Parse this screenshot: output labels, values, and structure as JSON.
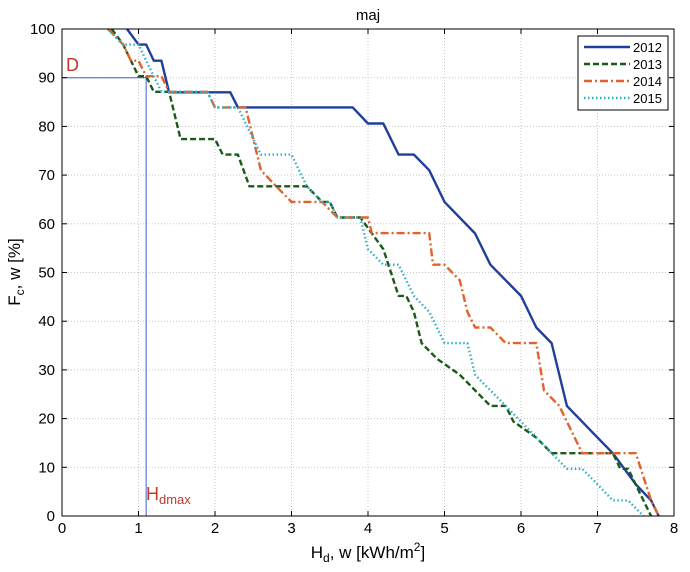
{
  "chart_data": {
    "type": "line",
    "title": "maj",
    "xlabel": {
      "main": "H",
      "sub": "d",
      "rest": ", w [kWh/m",
      "sup": "2",
      "end": "]"
    },
    "ylabel": {
      "main": "F",
      "sub": "c",
      "rest": ", w [%]"
    },
    "xlim": [
      0,
      8
    ],
    "ylim": [
      0,
      100
    ],
    "xticks": [
      "0",
      "1",
      "2",
      "3",
      "4",
      "5",
      "6",
      "7",
      "8"
    ],
    "yticks": [
      "0",
      "10",
      "20",
      "30",
      "40",
      "50",
      "60",
      "70",
      "80",
      "90",
      "100"
    ],
    "grid": true,
    "legend_position": "top-right",
    "annotations": {
      "D": {
        "label": "D",
        "value": 90,
        "color": "#c0392b"
      },
      "Hdmax": {
        "main": "H",
        "sub": "dmax",
        "value": 1.1,
        "color": "#c0392b"
      },
      "guide_color": "#3a5fcd"
    },
    "series": [
      {
        "name": "2012",
        "color": "#1f3f9a",
        "style": "solid",
        "points": [
          [
            0.85,
            100
          ],
          [
            1.0,
            96.8
          ],
          [
            1.1,
            96.8
          ],
          [
            1.2,
            93.5
          ],
          [
            1.3,
            93.5
          ],
          [
            1.4,
            87
          ],
          [
            2.2,
            87
          ],
          [
            2.3,
            83.9
          ],
          [
            3.8,
            83.9
          ],
          [
            4.0,
            80.6
          ],
          [
            4.2,
            80.6
          ],
          [
            4.4,
            74.2
          ],
          [
            4.6,
            74.2
          ],
          [
            4.8,
            71
          ],
          [
            5.0,
            64.5
          ],
          [
            5.4,
            58
          ],
          [
            5.6,
            51.6
          ],
          [
            6.0,
            45.2
          ],
          [
            6.2,
            38.7
          ],
          [
            6.4,
            35.5
          ],
          [
            6.6,
            22.6
          ],
          [
            7.0,
            16.1
          ],
          [
            7.2,
            12.9
          ],
          [
            7.5,
            6.5
          ],
          [
            7.7,
            3.2
          ],
          [
            7.8,
            0
          ]
        ]
      },
      {
        "name": "2013",
        "color": "#1a5a1a",
        "style": "dashed",
        "points": [
          [
            0.65,
            100
          ],
          [
            0.8,
            96.8
          ],
          [
            0.9,
            93.5
          ],
          [
            1.0,
            90.3
          ],
          [
            1.1,
            90.3
          ],
          [
            1.2,
            87.1
          ],
          [
            1.4,
            87.1
          ],
          [
            1.5,
            80.6
          ],
          [
            1.55,
            77.4
          ],
          [
            2.0,
            77.4
          ],
          [
            2.1,
            74.2
          ],
          [
            2.3,
            74.2
          ],
          [
            2.45,
            67.7
          ],
          [
            3.2,
            67.7
          ],
          [
            3.4,
            64.5
          ],
          [
            3.5,
            64.5
          ],
          [
            3.6,
            61.3
          ],
          [
            3.9,
            61.3
          ],
          [
            4.2,
            54.8
          ],
          [
            4.4,
            45.2
          ],
          [
            4.5,
            45.2
          ],
          [
            4.6,
            41.9
          ],
          [
            4.7,
            35.5
          ],
          [
            4.9,
            32.3
          ],
          [
            5.2,
            29
          ],
          [
            5.4,
            25.8
          ],
          [
            5.6,
            22.6
          ],
          [
            5.8,
            22.6
          ],
          [
            5.9,
            19.4
          ],
          [
            6.2,
            16.1
          ],
          [
            6.4,
            12.9
          ],
          [
            7.2,
            12.9
          ],
          [
            7.3,
            9.7
          ],
          [
            7.4,
            9.7
          ],
          [
            7.6,
            3.2
          ],
          [
            7.7,
            0
          ]
        ]
      },
      {
        "name": "2014",
        "color": "#e2622b",
        "style": "dashdot",
        "points": [
          [
            0.6,
            100
          ],
          [
            0.8,
            96.8
          ],
          [
            0.9,
            93.5
          ],
          [
            1.0,
            93.5
          ],
          [
            1.1,
            90.3
          ],
          [
            1.3,
            90.3
          ],
          [
            1.4,
            87.1
          ],
          [
            1.9,
            87.1
          ],
          [
            2.0,
            83.9
          ],
          [
            2.4,
            83.9
          ],
          [
            2.5,
            77.4
          ],
          [
            2.6,
            71
          ],
          [
            2.8,
            67.7
          ],
          [
            3.0,
            64.5
          ],
          [
            3.4,
            64.5
          ],
          [
            3.6,
            61.3
          ],
          [
            4.0,
            61.3
          ],
          [
            4.05,
            58.1
          ],
          [
            4.8,
            58.1
          ],
          [
            4.85,
            51.6
          ],
          [
            5.0,
            51.6
          ],
          [
            5.2,
            48.4
          ],
          [
            5.3,
            41.9
          ],
          [
            5.4,
            38.7
          ],
          [
            5.6,
            38.7
          ],
          [
            5.8,
            35.5
          ],
          [
            6.2,
            35.5
          ],
          [
            6.3,
            25.8
          ],
          [
            6.5,
            22.6
          ],
          [
            6.8,
            12.9
          ],
          [
            7.5,
            12.9
          ],
          [
            7.7,
            3.2
          ],
          [
            7.8,
            0
          ]
        ]
      },
      {
        "name": "2015",
        "color": "#2bb0c9",
        "style": "dotted",
        "points": [
          [
            0.6,
            100
          ],
          [
            0.8,
            96.8
          ],
          [
            1.0,
            96.8
          ],
          [
            1.1,
            93.5
          ],
          [
            1.3,
            87.1
          ],
          [
            1.9,
            87.1
          ],
          [
            2.0,
            83.9
          ],
          [
            2.3,
            83.9
          ],
          [
            2.4,
            80.6
          ],
          [
            2.6,
            74.2
          ],
          [
            3.0,
            74.2
          ],
          [
            3.2,
            67.7
          ],
          [
            3.4,
            64.5
          ],
          [
            3.5,
            64.5
          ],
          [
            3.6,
            61.3
          ],
          [
            3.9,
            61.3
          ],
          [
            4.0,
            54.8
          ],
          [
            4.2,
            51.6
          ],
          [
            4.4,
            51.6
          ],
          [
            4.6,
            45.2
          ],
          [
            4.8,
            41.9
          ],
          [
            5.0,
            35.5
          ],
          [
            5.3,
            35.5
          ],
          [
            5.4,
            29
          ],
          [
            5.8,
            22.6
          ],
          [
            6.0,
            19.4
          ],
          [
            6.4,
            12.9
          ],
          [
            6.6,
            9.7
          ],
          [
            6.8,
            9.7
          ],
          [
            7.0,
            6.5
          ],
          [
            7.2,
            3.2
          ],
          [
            7.4,
            3.2
          ],
          [
            7.6,
            0
          ]
        ]
      }
    ]
  }
}
